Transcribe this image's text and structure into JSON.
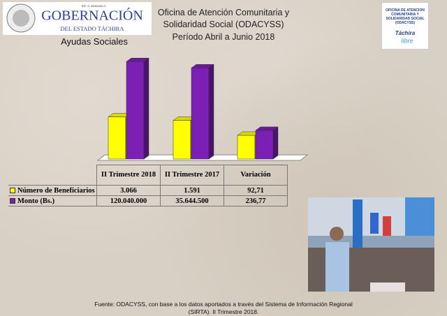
{
  "header": {
    "logo_title": "GOBERNACIÓN",
    "logo_subtitle": "DEL ESTADO TÁCHIRA",
    "logo_rif": "RIF: G-20000160-3",
    "right_logo_text": "OFICINA DE ATENCIÓN COMUNITARIA Y SOLIDARIDAD SOCIAL (ODACYSS)",
    "right_logo_brand": "Táchira",
    "right_logo_brand2": "libre"
  },
  "chart_data": {
    "type": "bar3d",
    "title": "Oficina de Atención Comunitaria y Solidaridad Social (ODACYSS)",
    "subtitle": "Período Abril a Junio 2018",
    "section": "Ayudas Sociales",
    "log_scale": true,
    "categories": [
      "II Trimestre 2018",
      "II Trimestre 2017",
      "Variación"
    ],
    "series": [
      {
        "name": "Número de Beneficiarios",
        "color": "#ffff00",
        "values": [
          3066,
          1591,
          92.71
        ],
        "value_labels": [
          "3.066",
          "1.591",
          "92,71"
        ]
      },
      {
        "name": "Monto (Bs.)",
        "color": "#7b1fb5",
        "values": [
          120040000,
          35644500,
          236.77
        ],
        "value_labels": [
          "120.040.000",
          "35.644.500",
          "236,77"
        ]
      }
    ],
    "note": "Fuente: ODACYSS, con base a  los datos aportados a través del Sistema de  Información Regional (SIRTA). II Trimestre 2018."
  }
}
